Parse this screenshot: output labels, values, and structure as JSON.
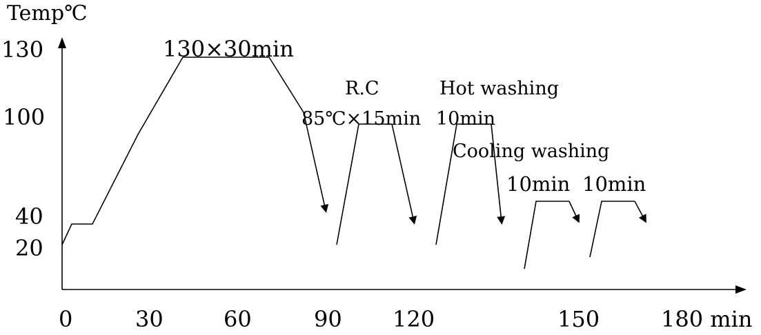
{
  "y_axis": {
    "unit_label": "Temp℃",
    "ticks": [
      "130",
      "100",
      "40",
      "20"
    ]
  },
  "x_axis": {
    "ticks": [
      "0",
      "30",
      "60",
      "90",
      "120",
      "150",
      "180 min"
    ]
  },
  "annotations": {
    "dyeing_hold": "130×30min",
    "rc_title": "R.C",
    "rc_hold": "85℃×15min",
    "hot_wash_title": "Hot washing",
    "hot_wash_hold": "10min",
    "cool_wash_title": "Cooling washing",
    "cool_wash_1": "10min",
    "cool_wash_2": "10min"
  }
}
